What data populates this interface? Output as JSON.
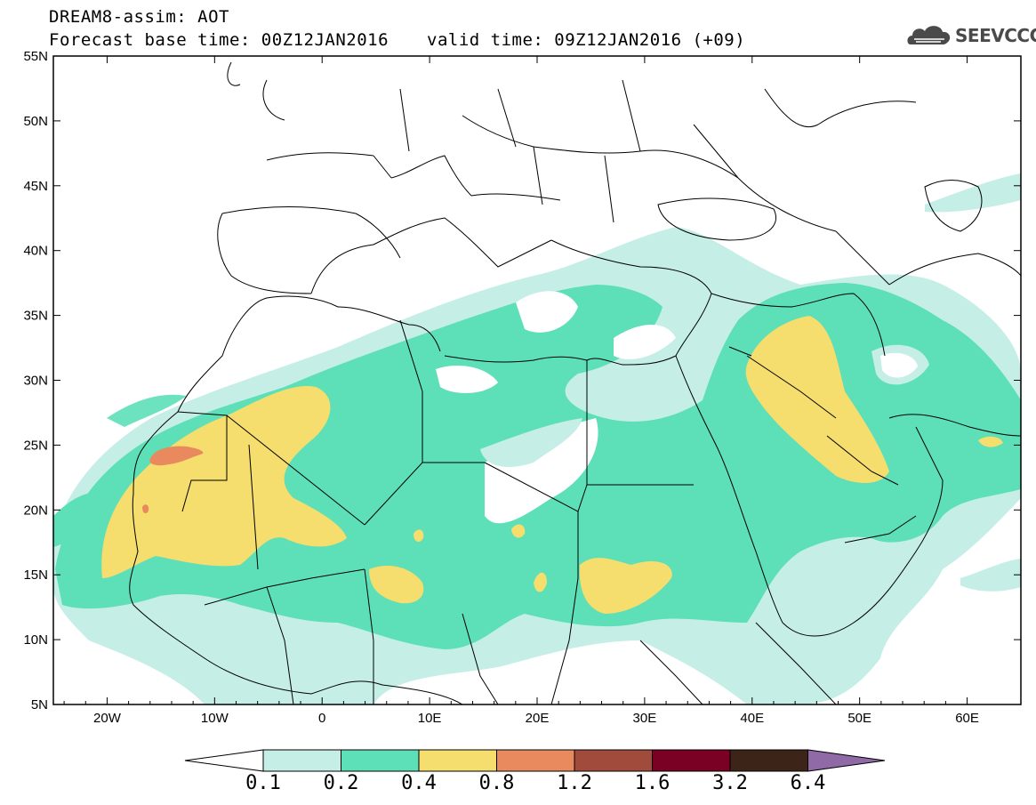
{
  "header": {
    "line1": "DREAM8-assim: AOT",
    "line2": "Forecast base time: 00Z12JAN2016",
    "line3": "valid time: 09Z12JAN2016 (+09)"
  },
  "logo": {
    "text": "SEEVCCC",
    "icon": "cloud-icon"
  },
  "map": {
    "lon_range": [
      -25,
      65
    ],
    "lat_range": [
      5,
      55
    ],
    "lat_ticks": [
      "5N",
      "10N",
      "15N",
      "20N",
      "25N",
      "30N",
      "35N",
      "40N",
      "45N",
      "50N",
      "55N"
    ],
    "lon_ticks": [
      "20W",
      "10W",
      "0",
      "10E",
      "20E",
      "30E",
      "40E",
      "50E",
      "60E"
    ],
    "colors": {
      "c01": "#c4eee6",
      "c02": "#5ddfb8",
      "c04": "#f5dd6e",
      "c08": "#e88a5e",
      "c12": "#a14b3c",
      "c16": "#7a0024",
      "c32": "#3d2418",
      "c64": "#8f6aa6"
    }
  },
  "colorbar": {
    "labels": [
      "0.1",
      "0.2",
      "0.4",
      "0.8",
      "1.2",
      "1.6",
      "3.2",
      "6.4"
    ]
  }
}
